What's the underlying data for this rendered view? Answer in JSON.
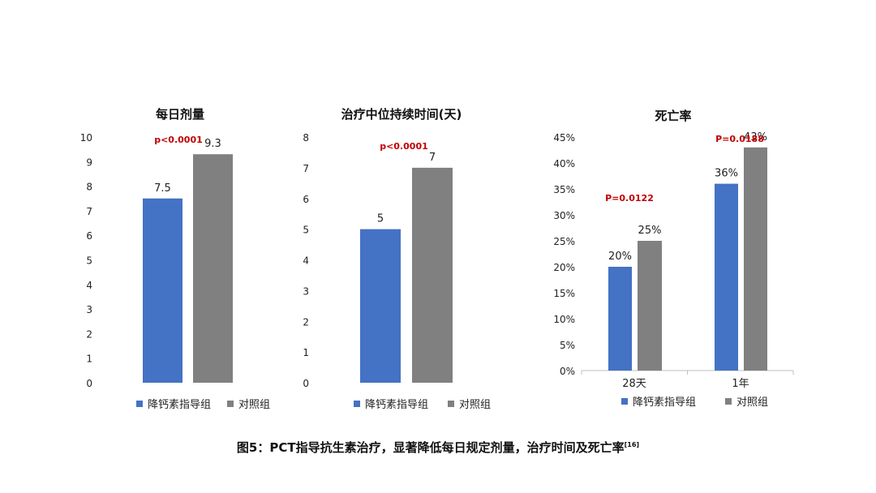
{
  "colors": {
    "series_a": "#4472c4",
    "series_b": "#808080",
    "pvalue": "#c00000",
    "text": "#222222",
    "axis": "#bfbfbf"
  },
  "caption": {
    "text": "图5：PCT指导抗生素治疗，显著降低每日规定剂量，治疗时间及死亡率",
    "ref": "[16]"
  },
  "chart_data": [
    {
      "type": "bar",
      "title": "每日剂量",
      "categories": [
        ""
      ],
      "series": [
        {
          "name": "降钙素指导组",
          "values": [
            7.5
          ]
        },
        {
          "name": "对照组",
          "values": [
            9.3
          ]
        }
      ],
      "data_labels": [
        [
          "7.5"
        ],
        [
          "9.3"
        ]
      ],
      "ylim": [
        0,
        10
      ],
      "yticks": [
        0,
        1,
        2,
        3,
        4,
        5,
        6,
        7,
        8,
        9,
        10
      ],
      "ytick_labels": [
        "0",
        "1",
        "2",
        "3",
        "4",
        "5",
        "6",
        "7",
        "8",
        "9",
        "10"
      ],
      "annotations": [
        {
          "text": "p<0.0001",
          "category_index": 0,
          "value": 9.3
        }
      ],
      "legend": "bottom",
      "grid": false
    },
    {
      "type": "bar",
      "title": "治疗中位持续时间(天)",
      "categories": [
        ""
      ],
      "series": [
        {
          "name": "降钙素指导组",
          "values": [
            5
          ]
        },
        {
          "name": "对照组",
          "values": [
            7
          ]
        }
      ],
      "data_labels": [
        [
          "5"
        ],
        [
          "7"
        ]
      ],
      "ylim": [
        0,
        8
      ],
      "yticks": [
        0,
        1,
        2,
        3,
        4,
        5,
        6,
        7,
        8
      ],
      "ytick_labels": [
        "0",
        "1",
        "2",
        "3",
        "4",
        "5",
        "6",
        "7",
        "8"
      ],
      "annotations": [
        {
          "text": "p<0.0001",
          "category_index": 0,
          "value": 7
        }
      ],
      "legend": "bottom",
      "grid": false
    },
    {
      "type": "bar",
      "title": "死亡率",
      "categories": [
        "28天",
        "1年"
      ],
      "series": [
        {
          "name": "降钙素指导组",
          "values": [
            20,
            36
          ]
        },
        {
          "name": "对照组",
          "values": [
            25,
            43
          ]
        }
      ],
      "data_labels": [
        [
          "20%",
          "36%"
        ],
        [
          "25%",
          "43%"
        ]
      ],
      "ylim": [
        0,
        45
      ],
      "yticks": [
        0,
        5,
        10,
        15,
        20,
        25,
        30,
        35,
        40,
        45
      ],
      "ytick_labels": [
        "0%",
        "5%",
        "10%",
        "15%",
        "20%",
        "25%",
        "30%",
        "35%",
        "40%",
        "45%"
      ],
      "annotations": [
        {
          "text": "P=0.0122",
          "category_index": 0,
          "value": 32
        },
        {
          "text": "P=0.0188",
          "category_index": 1,
          "value": 43
        }
      ],
      "legend": "bottom",
      "grid": false
    }
  ]
}
